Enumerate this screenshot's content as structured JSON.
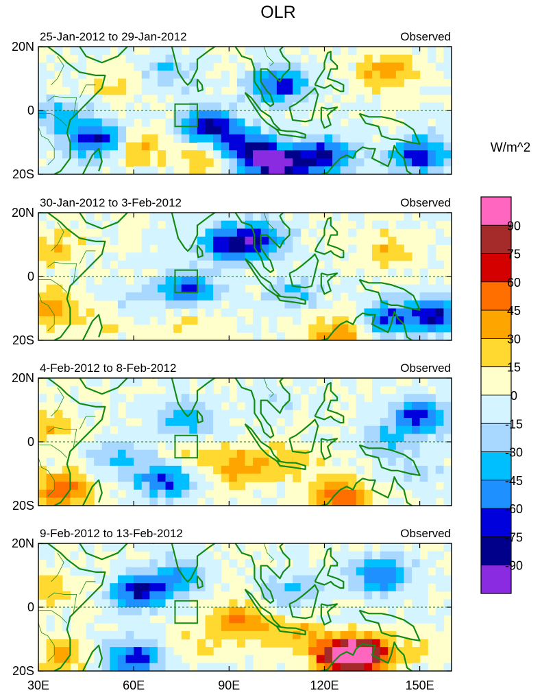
{
  "chart_data": {
    "type": "heatmap",
    "title": "OLR",
    "units_label": "W/m^2",
    "x_ticks": [
      {
        "value": 30,
        "label": "30E"
      },
      {
        "value": 60,
        "label": "60E"
      },
      {
        "value": 90,
        "label": "90E"
      },
      {
        "value": 120,
        "label": "120E"
      },
      {
        "value": 150,
        "label": "150E"
      }
    ],
    "y_ticks": [
      {
        "value": 20,
        "label": "20N"
      },
      {
        "value": 0,
        "label": "0"
      },
      {
        "value": -20,
        "label": "20S"
      }
    ],
    "xlim": [
      30,
      160
    ],
    "ylim": [
      -20,
      20
    ],
    "colorbar": {
      "levels": [
        90,
        75,
        60,
        45,
        30,
        15,
        0,
        -15,
        -30,
        -45,
        -60,
        -75,
        -90
      ],
      "labels": [
        "90",
        "75",
        "60",
        "45",
        "30",
        "15",
        "0",
        "-15",
        "-30",
        "-45",
        "-60",
        "-75",
        "-90"
      ],
      "colors": [
        "#ff66c0",
        "#a52a2a",
        "#d40000",
        "#ff6f00",
        "#ffa500",
        "#ffd830",
        "#ffffcc",
        "#d4f4ff",
        "#a8d8ff",
        "#00bfff",
        "#1e90ff",
        "#0000dd",
        "#00008b",
        "#8a2be2"
      ]
    },
    "box": {
      "lon": [
        73,
        80
      ],
      "lat": [
        -5,
        2
      ]
    },
    "panels": [
      {
        "date_label": "25-Jan-2012 to 29-Jan-2012",
        "status": "Observed",
        "anomalies": [
          {
            "lon": 48,
            "lat": -9,
            "value": -75
          },
          {
            "lon": 36,
            "lat": -2,
            "value": -35
          },
          {
            "lon": 84,
            "lat": -5,
            "value": -75
          },
          {
            "lon": 95,
            "lat": -12,
            "value": -70
          },
          {
            "lon": 105,
            "lat": -17,
            "value": -95
          },
          {
            "lon": 120,
            "lat": -14,
            "value": -75
          },
          {
            "lon": 150,
            "lat": -14,
            "value": -70
          },
          {
            "lon": 106,
            "lat": 8,
            "value": -70
          },
          {
            "lon": 72,
            "lat": 12,
            "value": -30
          },
          {
            "lon": 62,
            "lat": -12,
            "value": 30
          },
          {
            "lon": 82,
            "lat": -15,
            "value": 30
          },
          {
            "lon": 140,
            "lat": 12,
            "value": 40
          },
          {
            "lon": 55,
            "lat": 8,
            "value": 15
          }
        ]
      },
      {
        "date_label": "30-Jan-2012 to 3-Feb-2012",
        "status": "Observed",
        "anomalies": [
          {
            "lon": 90,
            "lat": 10,
            "value": -70
          },
          {
            "lon": 100,
            "lat": 12,
            "value": -50
          },
          {
            "lon": 77,
            "lat": -4,
            "value": -70
          },
          {
            "lon": 155,
            "lat": -12,
            "value": -75
          },
          {
            "lon": 140,
            "lat": -13,
            "value": -55
          },
          {
            "lon": 110,
            "lat": -5,
            "value": -30
          },
          {
            "lon": 60,
            "lat": -8,
            "value": -15
          },
          {
            "lon": 35,
            "lat": 8,
            "value": 30
          },
          {
            "lon": 33,
            "lat": -10,
            "value": 40
          },
          {
            "lon": 78,
            "lat": -14,
            "value": 20
          },
          {
            "lon": 125,
            "lat": -18,
            "value": 40
          },
          {
            "lon": 140,
            "lat": 8,
            "value": 25
          },
          {
            "lon": 50,
            "lat": -15,
            "value": 15
          }
        ]
      },
      {
        "date_label": "4-Feb-2012 to 8-Feb-2012",
        "status": "Observed",
        "anomalies": [
          {
            "lon": 38,
            "lat": -15,
            "value": 60
          },
          {
            "lon": 33,
            "lat": 5,
            "value": 30
          },
          {
            "lon": 94,
            "lat": -8,
            "value": 40
          },
          {
            "lon": 78,
            "lat": -5,
            "value": 25
          },
          {
            "lon": 125,
            "lat": -17,
            "value": 60
          },
          {
            "lon": 110,
            "lat": -6,
            "value": 25
          },
          {
            "lon": 70,
            "lat": -12,
            "value": -65
          },
          {
            "lon": 150,
            "lat": 8,
            "value": -70
          },
          {
            "lon": 76,
            "lat": 7,
            "value": -45
          },
          {
            "lon": 140,
            "lat": 0,
            "value": -30
          },
          {
            "lon": 55,
            "lat": -5,
            "value": -30
          },
          {
            "lon": 105,
            "lat": 12,
            "value": -15
          },
          {
            "lon": 150,
            "lat": -10,
            "value": -15
          }
        ]
      },
      {
        "date_label": "9-Feb-2012 to 13-Feb-2012",
        "status": "Observed",
        "anomalies": [
          {
            "lon": 62,
            "lat": 5,
            "value": -75
          },
          {
            "lon": 60,
            "lat": -16,
            "value": -70
          },
          {
            "lon": 75,
            "lat": 10,
            "value": -40
          },
          {
            "lon": 138,
            "lat": 10,
            "value": -60
          },
          {
            "lon": 110,
            "lat": 5,
            "value": -35
          },
          {
            "lon": 125,
            "lat": -15,
            "value": 75
          },
          {
            "lon": 132,
            "lat": -15,
            "value": 90
          },
          {
            "lon": 93,
            "lat": -4,
            "value": 45
          },
          {
            "lon": 110,
            "lat": -8,
            "value": 30
          },
          {
            "lon": 35,
            "lat": 5,
            "value": 25
          },
          {
            "lon": 38,
            "lat": -15,
            "value": 30
          },
          {
            "lon": 80,
            "lat": -12,
            "value": 20
          },
          {
            "lon": 150,
            "lat": -12,
            "value": 15
          }
        ]
      }
    ]
  }
}
